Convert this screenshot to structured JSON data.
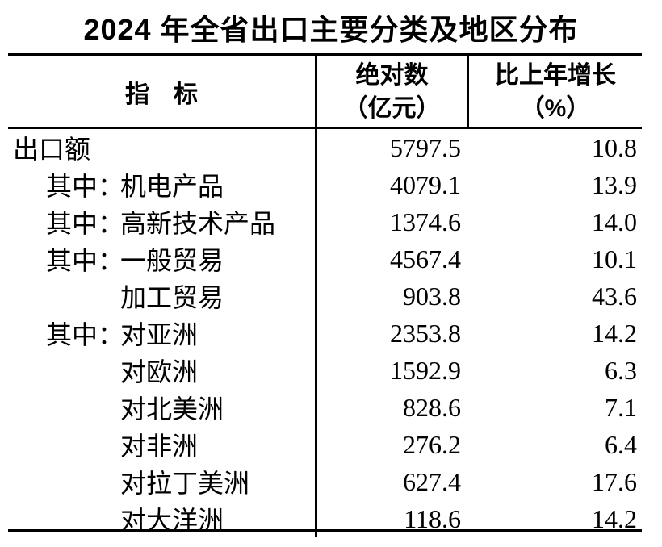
{
  "title": "2024 年全省出口主要分类及地区分布",
  "table": {
    "header": {
      "indicator": "指　标",
      "col2_line1": "绝对数",
      "col2_line2": "（亿元）",
      "col3_line1": "比上年增长",
      "col3_line2": "（%）"
    },
    "rows": [
      {
        "indent": 0,
        "prefix": "",
        "name": "出口额",
        "value": "5797.5",
        "growth": "10.8"
      },
      {
        "indent": 1,
        "prefix": "其中：",
        "name": "机电产品",
        "value": "4079.1",
        "growth": "13.9"
      },
      {
        "indent": 1,
        "prefix": "其中：",
        "name": "高新技术产品",
        "value": "1374.6",
        "growth": "14.0"
      },
      {
        "indent": 1,
        "prefix": "其中：",
        "name": "一般贸易",
        "value": "4567.4",
        "growth": "10.1"
      },
      {
        "indent": 2,
        "prefix": "",
        "name": "加工贸易",
        "value": "903.8",
        "growth": "43.6"
      },
      {
        "indent": 1,
        "prefix": "其中：",
        "name": "对亚洲",
        "value": "2353.8",
        "growth": "14.2"
      },
      {
        "indent": 2,
        "prefix": "",
        "name": "对欧洲",
        "value": "1592.9",
        "growth": "6.3"
      },
      {
        "indent": 2,
        "prefix": "",
        "name": "对北美洲",
        "value": "828.6",
        "growth": "7.1"
      },
      {
        "indent": 2,
        "prefix": "",
        "name": "对非洲",
        "value": "276.2",
        "growth": "6.4"
      },
      {
        "indent": 2,
        "prefix": "",
        "name": "对拉丁美洲",
        "value": "627.4",
        "growth": "17.6"
      },
      {
        "indent": 2,
        "prefix": "",
        "name": "对大洋洲",
        "value": "118.6",
        "growth": "14.2"
      }
    ]
  },
  "chart_data": {
    "type": "table",
    "title": "2024 年全省出口主要分类及地区分布",
    "columns": [
      "指标",
      "绝对数（亿元）",
      "比上年增长（%）"
    ],
    "rows": [
      [
        "出口额",
        5797.5,
        10.8
      ],
      [
        "其中：机电产品",
        4079.1,
        13.9
      ],
      [
        "其中：高新技术产品",
        1374.6,
        14.0
      ],
      [
        "其中：一般贸易",
        4567.4,
        10.1
      ],
      [
        "加工贸易",
        903.8,
        43.6
      ],
      [
        "其中：对亚洲",
        2353.8,
        14.2
      ],
      [
        "对欧洲",
        1592.9,
        6.3
      ],
      [
        "对北美洲",
        828.6,
        7.1
      ],
      [
        "对非洲",
        276.2,
        6.4
      ],
      [
        "对拉丁美洲",
        627.4,
        17.6
      ],
      [
        "对大洋洲",
        118.6,
        14.2
      ]
    ]
  }
}
